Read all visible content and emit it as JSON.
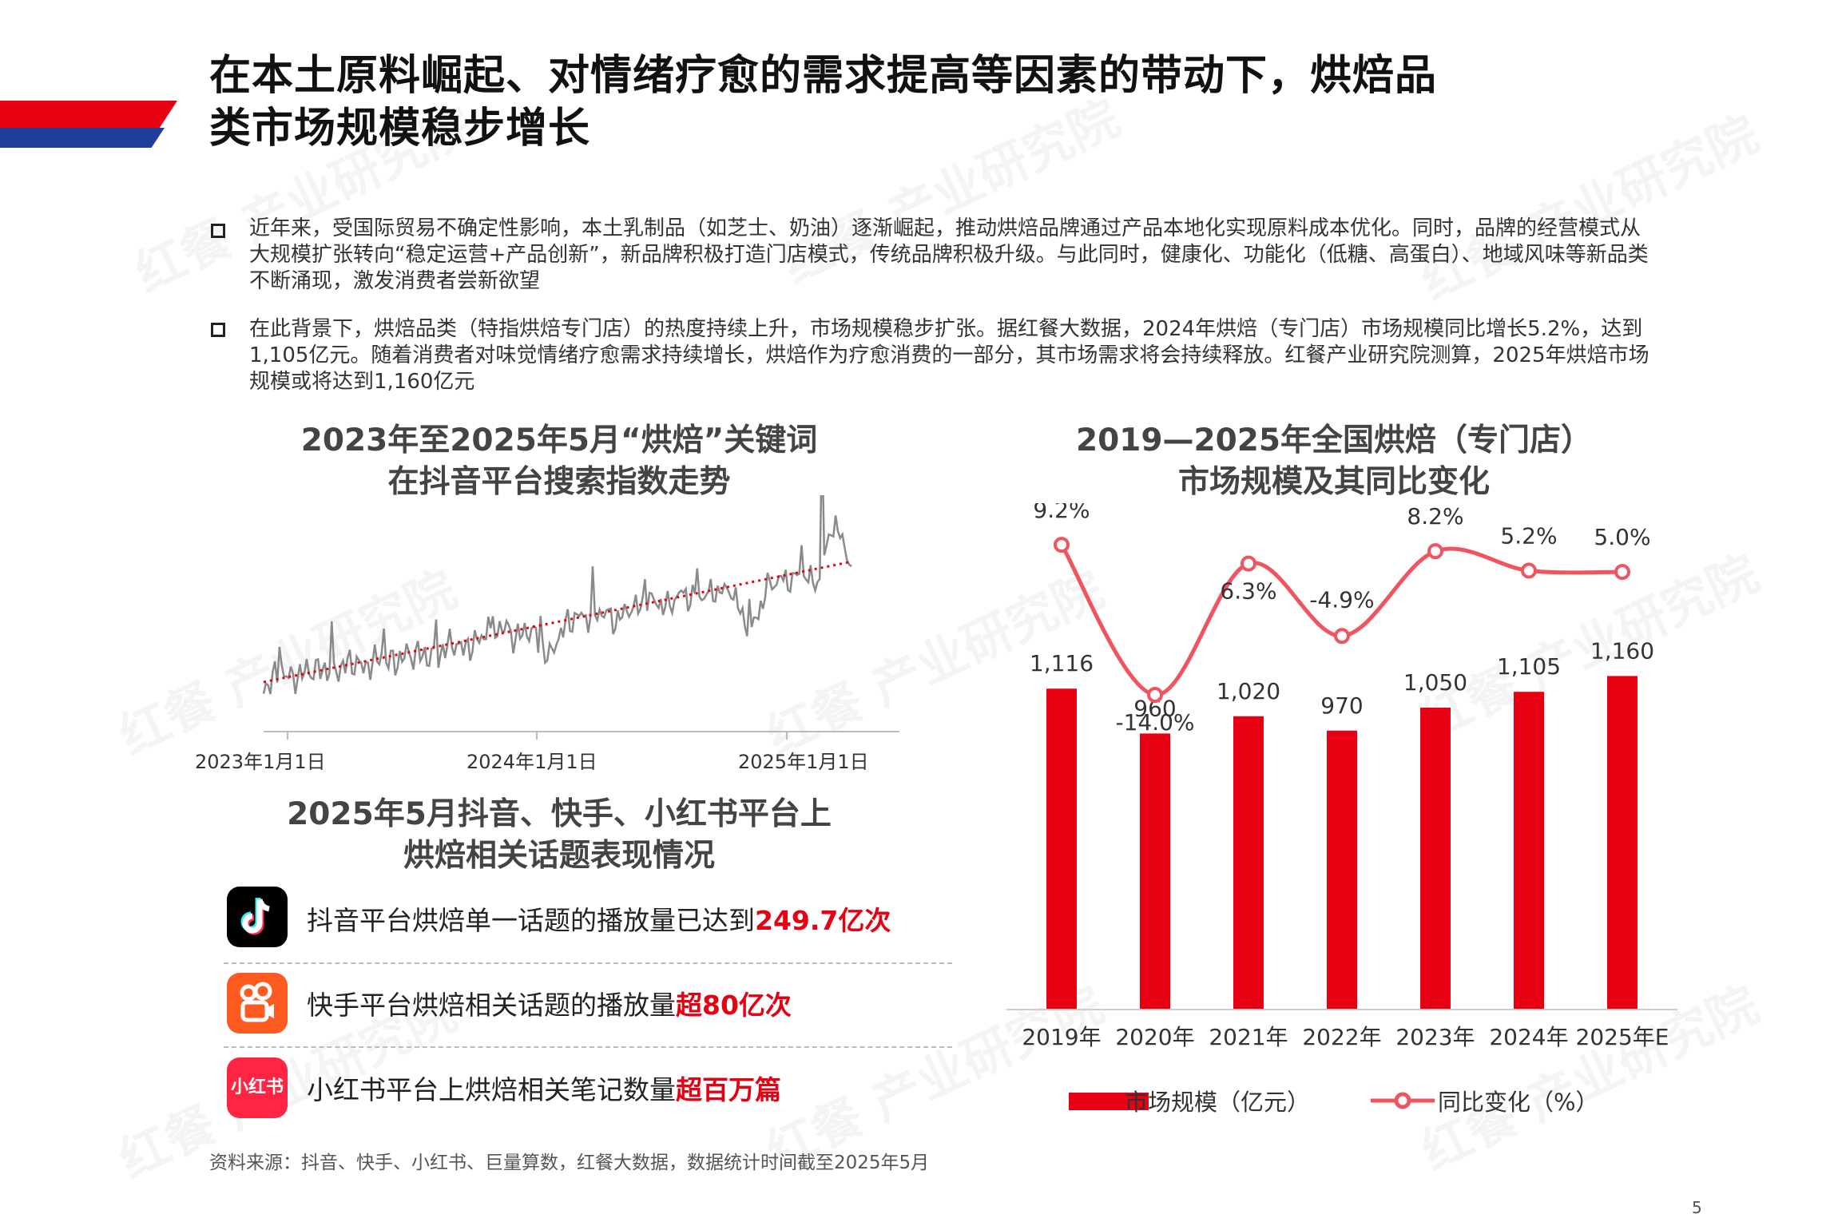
{
  "page": {
    "title_line1": "在本土原料崛起、对情绪疗愈的需求提高等因素的带动下，烘焙品",
    "title_line2": "类市场规模稳步增长",
    "watermark": "红餐 产业研究院",
    "paragraph1": "近年来，受国际贸易不确定性影响，本土乳制品（如芝士、奶油）逐渐崛起，推动烘焙品牌通过产品本地化实现原料成本优化。同时，品牌的经营模式从大规模扩张转向“稳定运营+产品创新”，新品牌积极打造门店模式，传统品牌积极升级。与此同时，健康化、功能化（低糖、高蛋白）、地域风味等新品类不断涌现，激发消费者尝新欲望",
    "paragraph2": "在此背景下，烘焙品类（特指烘焙专门店）的热度持续上升，市场规模稳步扩张。据红餐大数据，2024年烘焙（专门店）市场规模同比增长5.2%，达到1,105亿元。随着消费者对味觉情绪疗愈需求持续增长，烘焙作为疗愈消费的一部分，其市场需求将会持续释放。红餐产业研究院测算，2025年烘焙市场规模或将达到1,160亿元",
    "source": "资料来源：抖音、快手、小红书、巨量算数，红餐大数据，数据统计时间截至2025年5月",
    "page_number": "5"
  },
  "search_chart": {
    "title_line1": "2023年至2025年5月“烘焙”关键词",
    "title_line2": "在抖音平台搜索指数走势",
    "x_ticks": [
      "2023年1月1日",
      "2024年1月1日",
      "2025年1月1日"
    ]
  },
  "topics": {
    "title_line1": "2025年5月抖音、快手、小红书平台上",
    "title_line2": "烘焙相关话题表现情况",
    "items": [
      {
        "icon": "douyin-icon",
        "text": "抖音平台烘焙单一话题的播放量已达到",
        "highlight": "249.7亿次",
        "color": "#000000"
      },
      {
        "icon": "kuaishou-icon",
        "text": "快手平台烘焙相关话题的播放量",
        "highlight": "超80亿次",
        "color": "#ff5a1f"
      },
      {
        "icon": "xiaohongshu-icon",
        "text": "小红书平台上烘焙相关笔记数量",
        "highlight": "超百万篇",
        "color": "#ff2442"
      }
    ],
    "xhs_logo_text": "小红书"
  },
  "chart_data": [
    {
      "type": "line",
      "title": "2023年至2025年5月“烘焙”关键词在抖音平台搜索指数走势",
      "x_ticks": [
        "2023年1月1日",
        "2024年1月1日",
        "2025年1月1日"
      ],
      "x_range": [
        "2023-01-01",
        "2025-05-31"
      ],
      "series": [
        {
          "values": [
            18,
            24,
            22,
            26,
            25,
            28,
            27,
            30,
            29,
            33,
            30,
            36,
            35,
            38,
            44,
            40,
            42,
            30,
            46,
            48,
            50,
            47,
            52,
            55,
            53,
            58,
            56,
            60,
            58,
            40,
            62,
            64,
            66,
            63,
            90,
            70
          ]
        },
        {
          "name": "trend",
          "values": [
            20,
            72
          ]
        }
      ],
      "trendline": true,
      "grid": false
    },
    {
      "type": "bar",
      "title": "2019—2025年全国烘焙（专门店）市场规模及其同比变化",
      "categories": [
        "2019年",
        "2020年",
        "2021年",
        "2022年",
        "2023年",
        "2024年",
        "2025年E"
      ],
      "series": [
        {
          "name": "市场规模（亿元）",
          "type": "bar",
          "values": [
            1116,
            960,
            1020,
            970,
            1050,
            1105,
            1160
          ],
          "labels": [
            "1,116",
            "960",
            "1,020",
            "970",
            "1,050",
            "1,105",
            "1,160"
          ],
          "color": "#e60012"
        },
        {
          "name": "同比变化（%）",
          "type": "line",
          "values": [
            9.2,
            -14.0,
            6.3,
            -4.9,
            8.2,
            5.2,
            5.0
          ],
          "labels": [
            "9.2%",
            "-14.0%",
            "6.3%",
            "-4.9%",
            "8.2%",
            "5.2%",
            "5.0%"
          ],
          "color": "#f0545e"
        }
      ],
      "legend": "bottom"
    }
  ],
  "market_chart": {
    "title_line1": "2019—2025年全国烘焙（专门店）",
    "title_line2": "市场规模及其同比变化",
    "legend_bar": "市场规模（亿元）",
    "legend_line": "同比变化（%）"
  }
}
